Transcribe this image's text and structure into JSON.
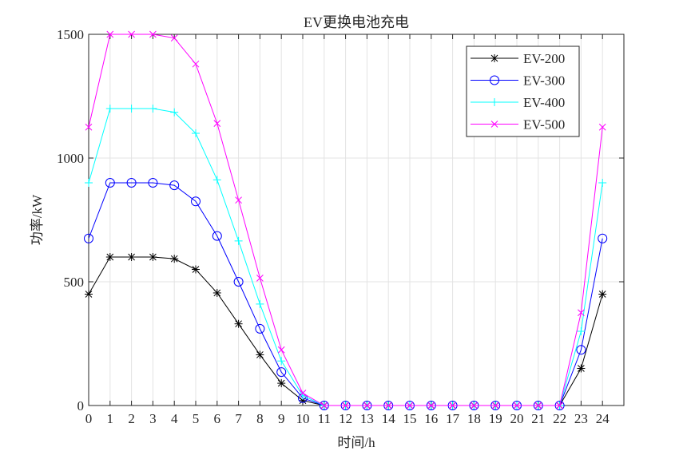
{
  "chart_data": {
    "type": "line",
    "title": "EV更换电池充电",
    "xlabel": "时间/h",
    "ylabel": "功率/kW",
    "xlim": [
      0,
      25
    ],
    "ylim": [
      0,
      1500
    ],
    "grid": true,
    "legend_position": "top-right",
    "x": [
      0,
      1,
      2,
      3,
      4,
      5,
      6,
      7,
      8,
      9,
      10,
      11,
      12,
      13,
      14,
      15,
      16,
      17,
      18,
      19,
      20,
      21,
      22,
      23,
      24
    ],
    "x_ticks": [
      "0",
      "1",
      "2",
      "3",
      "4",
      "5",
      "6",
      "7",
      "8",
      "9",
      "10",
      "11",
      "12",
      "13",
      "14",
      "15",
      "16",
      "17",
      "18",
      "19",
      "20",
      "21",
      "22",
      "23",
      "24"
    ],
    "y_ticks": [
      {
        "value": 0,
        "label": "0"
      },
      {
        "value": 500,
        "label": "500"
      },
      {
        "value": 1000,
        "label": "1000"
      },
      {
        "value": 1500,
        "label": "1500"
      }
    ],
    "series": [
      {
        "name": "EV-200",
        "color": "#000000",
        "marker": "asterisk",
        "values": [
          450,
          600,
          600,
          600,
          593,
          550,
          455,
          330,
          205,
          90,
          20,
          0,
          0,
          0,
          0,
          0,
          0,
          0,
          0,
          0,
          0,
          0,
          0,
          150,
          450
        ]
      },
      {
        "name": "EV-300",
        "color": "#0000ff",
        "marker": "circle",
        "values": [
          675,
          900,
          900,
          900,
          890,
          825,
          685,
          500,
          310,
          135,
          30,
          0,
          0,
          0,
          0,
          0,
          0,
          0,
          0,
          0,
          0,
          0,
          0,
          225,
          675
        ]
      },
      {
        "name": "EV-400",
        "color": "#00ffff",
        "marker": "plus",
        "values": [
          900,
          1200,
          1200,
          1200,
          1185,
          1100,
          912,
          665,
          410,
          180,
          40,
          0,
          0,
          0,
          0,
          0,
          0,
          0,
          0,
          0,
          0,
          0,
          0,
          300,
          900
        ]
      },
      {
        "name": "EV-500",
        "color": "#ff00ff",
        "marker": "cross",
        "values": [
          1125,
          1500,
          1500,
          1500,
          1485,
          1380,
          1140,
          830,
          515,
          225,
          50,
          0,
          0,
          0,
          0,
          0,
          0,
          0,
          0,
          0,
          0,
          0,
          0,
          375,
          1125
        ]
      }
    ]
  }
}
